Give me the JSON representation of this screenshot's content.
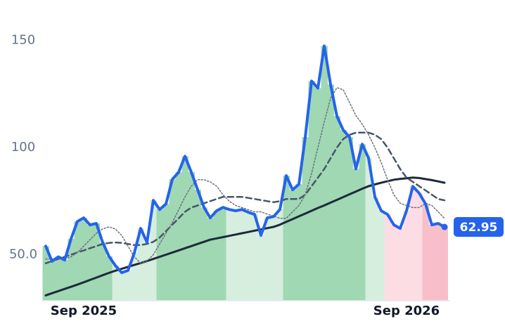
{
  "chart_data": {
    "type": "line",
    "categories": [
      null,
      null,
      null,
      null,
      null,
      null,
      "Sep 2025",
      null,
      null,
      null,
      null,
      null,
      null,
      null,
      null,
      null,
      null,
      null,
      null,
      null,
      null,
      null,
      null,
      null,
      null,
      null,
      null,
      null,
      null,
      null,
      null,
      null,
      null,
      null,
      null,
      null,
      null,
      null,
      null,
      null,
      null,
      null,
      null,
      null,
      null,
      null,
      null,
      null,
      null,
      null,
      null,
      null,
      null,
      null,
      null,
      null,
      null,
      "Sep 2026",
      null,
      null,
      null,
      null,
      null,
      null
    ],
    "series": [
      {
        "color": "#2563eb",
        "style": "solid",
        "width": 4,
        "values": [
          54,
          46.9,
          49,
          47.5,
          57.4,
          65.5,
          67.2,
          63.9,
          64.6,
          55.7,
          49.2,
          44.9,
          41.6,
          42.6,
          50.8,
          62.3,
          55.7,
          75.4,
          71.1,
          73.7,
          85.2,
          88.5,
          96,
          88.5,
          80.3,
          72.1,
          67.2,
          70.5,
          72.1,
          71.1,
          70.5,
          71.1,
          69.8,
          68.8,
          59,
          67.2,
          67.8,
          71.1,
          86.9,
          80.3,
          82.9,
          104.9,
          131.1,
          127.8,
          147.5,
          129.5,
          114.7,
          108.2,
          104.9,
          90.1,
          101.6,
          95.1,
          77,
          70.5,
          68.8,
          63.9,
          62.3,
          70.5,
          81.9,
          78.7,
          73.7,
          63.9,
          64.6,
          62.95
        ]
      },
      {
        "color": "#6b7280",
        "style": "dotted",
        "width": 1.5,
        "values": [
          48,
          48,
          48,
          48,
          49,
          51,
          54,
          57,
          60,
          62,
          63,
          62,
          59,
          54,
          49,
          46,
          47,
          50,
          55,
          60,
          65,
          71,
          77,
          82,
          85,
          85,
          84,
          82,
          78,
          75,
          73,
          72,
          71,
          70,
          70,
          69,
          68,
          67,
          67,
          70,
          73,
          78,
          88,
          100,
          112,
          123,
          128,
          127,
          121,
          115,
          111,
          106,
          100,
          93,
          85,
          78,
          74,
          73,
          72,
          72,
          74,
          73,
          70,
          67
        ]
      },
      {
        "color": "#475569",
        "style": "dashed",
        "width": 2.5,
        "values": [
          46,
          47,
          48,
          49,
          50,
          51,
          52,
          53,
          54,
          55,
          55.5,
          55.7,
          55.5,
          55,
          54.5,
          54.5,
          55,
          56,
          58,
          61,
          64,
          67,
          70,
          72,
          73,
          74,
          75,
          76,
          77,
          77,
          77,
          77,
          76.5,
          76,
          75.5,
          75,
          74.5,
          75,
          76,
          76,
          76,
          78,
          82,
          86,
          90,
          95,
          100,
          104,
          106,
          107,
          107,
          107,
          106,
          104,
          100,
          95,
          90,
          86,
          84,
          82,
          80,
          78,
          76,
          75.4
        ]
      },
      {
        "color": "#1e293b",
        "style": "solid",
        "width": 3,
        "values": [
          31,
          32,
          33,
          34,
          35,
          36,
          37.1,
          38.2,
          39.3,
          40.4,
          41.5,
          42.5,
          43.4,
          44.3,
          45.2,
          46.1,
          47,
          48,
          49,
          50,
          51,
          52,
          53,
          54,
          55,
          56,
          57,
          57.6,
          58.2,
          58.8,
          59.4,
          60,
          60.6,
          61.2,
          61.8,
          62.4,
          63,
          64,
          65.3,
          66.6,
          67.9,
          69.2,
          70.5,
          71.8,
          73,
          74.3,
          75.6,
          76.9,
          78.2,
          79.5,
          80.8,
          82,
          82.8,
          83.6,
          84.3,
          85,
          85.4,
          85.7,
          86,
          85.8,
          85.3,
          84.8,
          84.2,
          83.6
        ]
      }
    ],
    "bar_colors": [
      "#9fd8b3",
      "#9fd8b3",
      "#9fd8b3",
      "#9fd8b3",
      "#9fd8b3",
      "#9fd8b3",
      "#9fd8b3",
      "#9fd8b3",
      "#9fd8b3",
      "#9fd8b3",
      "#9fd8b3",
      "#d5eedd",
      "#d5eedd",
      "#d5eedd",
      "#d5eedd",
      "#d5eedd",
      "#d5eedd",
      "#d5eedd",
      "#9fd8b3",
      "#9fd8b3",
      "#9fd8b3",
      "#9fd8b3",
      "#9fd8b3",
      "#9fd8b3",
      "#9fd8b3",
      "#9fd8b3",
      "#9fd8b3",
      "#9fd8b3",
      "#9fd8b3",
      "#d5eedd",
      "#d5eedd",
      "#d5eedd",
      "#d5eedd",
      "#d5eedd",
      "#d5eedd",
      "#d5eedd",
      "#d5eedd",
      "#d5eedd",
      "#9fd8b3",
      "#9fd8b3",
      "#9fd8b3",
      "#9fd8b3",
      "#9fd8b3",
      "#9fd8b3",
      "#9fd8b3",
      "#9fd8b3",
      "#9fd8b3",
      "#9fd8b3",
      "#9fd8b3",
      "#9fd8b3",
      "#9fd8b3",
      "#d5eedd",
      "#d5eedd",
      "#d5eedd",
      "#fcdde3",
      "#fcdde3",
      "#fcdde3",
      "#fcdde3",
      "#fcdde3",
      "#fcdde3",
      "#f8bfca",
      "#f8bfca",
      "#f8bfca",
      "#f8bfca"
    ],
    "ylim": [
      28.5,
      165
    ],
    "yticks": [
      {
        "value": 50,
        "label": "50.0"
      },
      100,
      150
    ],
    "last_label_color": "#2563eb"
  }
}
